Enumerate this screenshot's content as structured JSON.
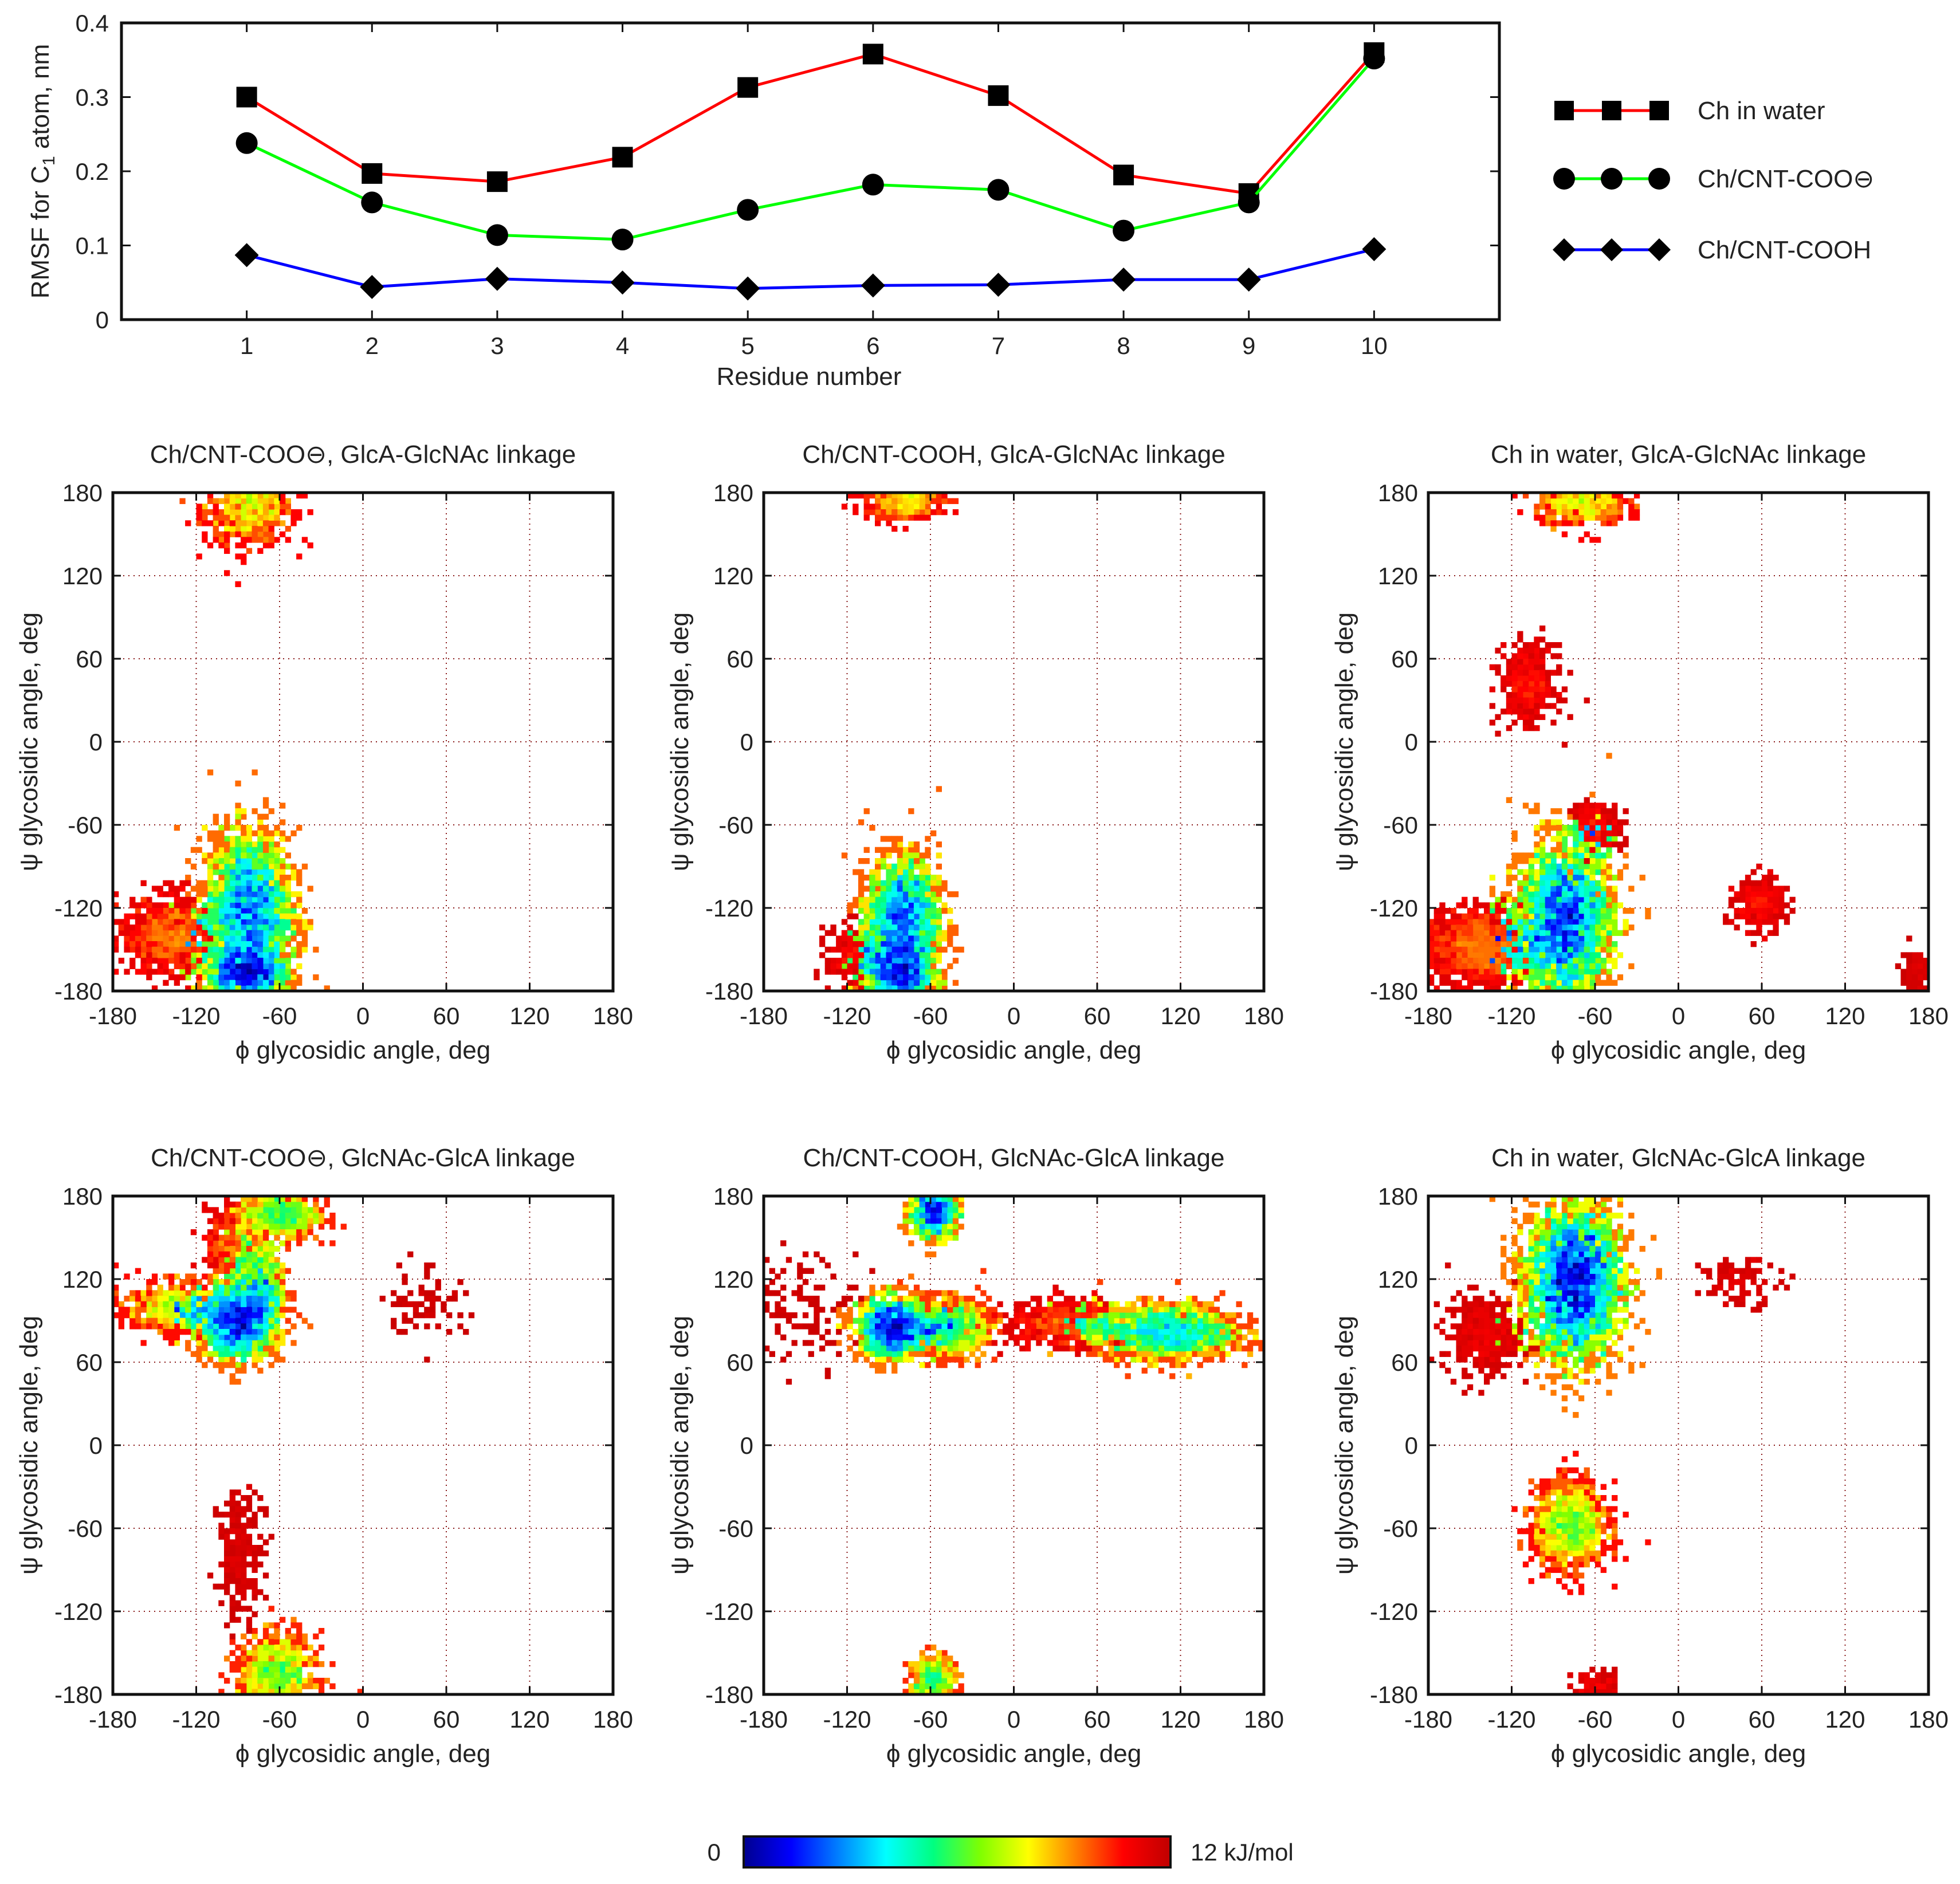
{
  "chart_data": [
    {
      "type": "line",
      "ylabel": "RMSF for C1 atom, nm",
      "xlabel": "Residue number",
      "x": [
        1,
        2,
        3,
        4,
        5,
        6,
        7,
        8,
        9,
        10
      ],
      "xlim": [
        0.0,
        11.0
      ],
      "ylim": [
        0,
        0.4
      ],
      "yticks": [
        "0",
        "0.1",
        "0.2",
        "0.3",
        "0.4"
      ],
      "yticks_values": [
        0,
        0.1,
        0.2,
        0.3,
        0.4
      ],
      "series": [
        {
          "name": "Ch in water",
          "color": "#ff0000",
          "marker": "square",
          "values": [
            0.3,
            0.197,
            0.186,
            0.219,
            0.313,
            0.358,
            0.302,
            0.195,
            0.17,
            0.36
          ]
        },
        {
          "name": "Ch/CNT-COO⊖",
          "color": "#00ff00",
          "marker": "circle",
          "values": [
            0.238,
            0.158,
            0.114,
            0.108,
            0.148,
            0.182,
            0.175,
            0.12,
            0.158,
            0.352
          ]
        },
        {
          "name": "Ch/CNT-COOH",
          "color": "#0000ff",
          "marker": "diamond",
          "values": [
            0.087,
            0.044,
            0.055,
            0.05,
            0.042,
            0.046,
            0.047,
            0.054,
            0.054,
            0.095
          ]
        }
      ],
      "legend": "right"
    },
    {
      "type": "heatmap",
      "title": "Ch/CNT-COO⊖, GlcA-GlcNAc linkage",
      "xlabel": "ϕ glycosidic angle, deg",
      "ylabel": "ψ glycosidic angle, deg",
      "xlim": [
        -180,
        180
      ],
      "ylim": [
        -180,
        180
      ],
      "ticks": [
        "-180",
        "-120",
        "-60",
        "0",
        "60",
        "120",
        "180"
      ],
      "ticks_values": [
        -180,
        -120,
        -60,
        0,
        60,
        120,
        180
      ],
      "clusters": [
        {
          "phi": -82,
          "psi": 170,
          "sphi": 16,
          "spsi": 14,
          "n": 70,
          "depth": 0.45
        },
        {
          "phi": -82,
          "psi": -122,
          "sphi": 15,
          "spsi": 28,
          "n": 240,
          "depth": 0.0
        },
        {
          "phi": -84,
          "psi": -168,
          "sphi": 14,
          "spsi": 10,
          "n": 120,
          "depth": 0.0
        },
        {
          "phi": -135,
          "psi": -140,
          "sphi": 20,
          "spsi": 14,
          "n": 80,
          "depth": 0.65
        }
      ]
    },
    {
      "type": "heatmap",
      "title": "Ch/CNT-COOH, GlcA-GlcNAc linkage",
      "xlabel": "ϕ glycosidic angle, deg",
      "ylabel": "ψ glycosidic angle, deg",
      "xlim": [
        -180,
        180
      ],
      "ylim": [
        -180,
        180
      ],
      "ticks": [
        "-180",
        "-120",
        "-60",
        "0",
        "60",
        "120",
        "180"
      ],
      "ticks_values": [
        -180,
        -120,
        -60,
        0,
        60,
        120,
        180
      ],
      "clusters": [
        {
          "phi": -80,
          "psi": 175,
          "sphi": 14,
          "spsi": 7,
          "n": 45,
          "depth": 0.55
        },
        {
          "phi": -80,
          "psi": -128,
          "sphi": 13,
          "spsi": 22,
          "n": 200,
          "depth": 0.05
        },
        {
          "phi": -82,
          "psi": -168,
          "sphi": 12,
          "spsi": 10,
          "n": 90,
          "depth": 0.0
        },
        {
          "phi": -110,
          "psi": -155,
          "sphi": 12,
          "spsi": 12,
          "n": 35,
          "depth": 0.8
        }
      ]
    },
    {
      "type": "heatmap",
      "title": "Ch in water, GlcA-GlcNAc linkage",
      "xlabel": "ϕ glycosidic angle, deg",
      "ylabel": "ψ glycosidic angle, deg",
      "xlim": [
        -180,
        180
      ],
      "ylim": [
        -180,
        180
      ],
      "ticks": [
        "-180",
        "-120",
        "-60",
        "0",
        "60",
        "120",
        "180"
      ],
      "ticks_values": [
        -180,
        -120,
        -60,
        0,
        60,
        120,
        180
      ],
      "clusters": [
        {
          "phi": -82,
          "psi": -130,
          "sphi": 17,
          "spsi": 28,
          "n": 280,
          "depth": 0.0
        },
        {
          "phi": -142,
          "psi": -148,
          "sphi": 20,
          "spsi": 14,
          "n": 130,
          "depth": 0.72
        },
        {
          "phi": -70,
          "psi": 172,
          "sphi": 16,
          "spsi": 8,
          "n": 50,
          "depth": 0.5
        },
        {
          "phi": -108,
          "psi": 42,
          "sphi": 10,
          "spsi": 14,
          "n": 40,
          "depth": 0.8
        },
        {
          "phi": 58,
          "psi": -118,
          "sphi": 9,
          "spsi": 10,
          "n": 30,
          "depth": 0.82
        },
        {
          "phi": -60,
          "psi": -62,
          "sphi": 9,
          "spsi": 9,
          "n": 30,
          "depth": 0.82
        },
        {
          "phi": 172,
          "psi": -165,
          "sphi": 5,
          "spsi": 8,
          "n": 10,
          "depth": 0.9
        }
      ]
    },
    {
      "type": "heatmap",
      "title": "Ch/CNT-COO⊖, GlcNAc-GlcA linkage",
      "xlabel": "ϕ glycosidic angle, deg",
      "ylabel": "ψ glycosidic angle, deg",
      "xlim": [
        -180,
        180
      ],
      "ylim": [
        -180,
        180
      ],
      "ticks": [
        "-180",
        "-120",
        "-60",
        "0",
        "60",
        "120",
        "180"
      ],
      "ticks_values": [
        -180,
        -120,
        -60,
        0,
        60,
        120,
        180
      ],
      "clusters": [
        {
          "phi": -90,
          "psi": 87,
          "sphi": 14,
          "spsi": 12,
          "n": 140,
          "depth": 0.0
        },
        {
          "phi": -130,
          "psi": 100,
          "sphi": 20,
          "spsi": 9,
          "n": 80,
          "depth": 0.4
        },
        {
          "phi": -74,
          "psi": 113,
          "sphi": 9,
          "spsi": 14,
          "n": 60,
          "depth": 0.2
        },
        {
          "phi": -60,
          "psi": 167,
          "sphi": 14,
          "spsi": 9,
          "n": 70,
          "depth": 0.3
        },
        {
          "phi": -92,
          "psi": 142,
          "sphi": 10,
          "spsi": 14,
          "n": 45,
          "depth": 0.65
        },
        {
          "phi": -62,
          "psi": -165,
          "sphi": 14,
          "spsi": 14,
          "n": 80,
          "depth": 0.3
        },
        {
          "phi": -88,
          "psi": -78,
          "sphi": 8,
          "spsi": 22,
          "n": 25,
          "depth": 0.88
        },
        {
          "phi": 45,
          "psi": 105,
          "sphi": 14,
          "spsi": 14,
          "n": 8,
          "depth": 0.9
        }
      ]
    },
    {
      "type": "heatmap",
      "title": "Ch/CNT-COOH, GlcNAc-GlcA linkage",
      "xlabel": "ϕ glycosidic angle, deg",
      "ylabel": "ψ glycosidic angle, deg",
      "xlim": [
        -180,
        180
      ],
      "ylim": [
        -180,
        180
      ],
      "ticks": [
        "-180",
        "-120",
        "-60",
        "0",
        "60",
        "120",
        "180"
      ],
      "ticks_values": [
        -180,
        -120,
        -60,
        0,
        60,
        120,
        180
      ],
      "clusters": [
        {
          "phi": -58,
          "psi": 168,
          "sphi": 9,
          "spsi": 9,
          "n": 60,
          "depth": 0.0
        },
        {
          "phi": -88,
          "psi": 85,
          "sphi": 12,
          "spsi": 11,
          "n": 110,
          "depth": 0.0
        },
        {
          "phi": -48,
          "psi": 85,
          "sphi": 14,
          "spsi": 10,
          "n": 80,
          "depth": 0.25
        },
        {
          "phi": 110,
          "psi": 82,
          "sphi": 25,
          "spsi": 10,
          "n": 160,
          "depth": 0.2
        },
        {
          "phi": 40,
          "psi": 88,
          "sphi": 22,
          "spsi": 8,
          "n": 60,
          "depth": 0.72
        },
        {
          "phi": -58,
          "psi": -170,
          "sphi": 8,
          "spsi": 9,
          "n": 40,
          "depth": 0.3
        },
        {
          "phi": -150,
          "psi": 100,
          "sphi": 20,
          "spsi": 20,
          "n": 12,
          "depth": 0.9
        }
      ]
    },
    {
      "type": "heatmap",
      "title": "Ch in water, GlcNAc-GlcA linkage",
      "xlabel": "ϕ glycosidic angle, deg",
      "ylabel": "ψ glycosidic angle, deg",
      "xlim": [
        -180,
        180
      ],
      "ylim": [
        -180,
        180
      ],
      "ticks": [
        "-180",
        "-120",
        "-60",
        "0",
        "60",
        "120",
        "180"
      ],
      "ticks_values": [
        -180,
        -120,
        -60,
        0,
        60,
        120,
        180
      ],
      "clusters": [
        {
          "phi": -75,
          "psi": 118,
          "sphi": 17,
          "spsi": 28,
          "n": 320,
          "depth": 0.0
        },
        {
          "phi": -140,
          "psi": 80,
          "sphi": 14,
          "spsi": 14,
          "n": 40,
          "depth": 0.85
        },
        {
          "phi": -78,
          "psi": -58,
          "sphi": 13,
          "spsi": 15,
          "n": 120,
          "depth": 0.45
        },
        {
          "phi": -60,
          "psi": -175,
          "sphi": 8,
          "spsi": 6,
          "n": 12,
          "depth": 0.85
        },
        {
          "phi": 45,
          "psi": 118,
          "sphi": 14,
          "spsi": 8,
          "n": 10,
          "depth": 0.85
        }
      ]
    }
  ],
  "colorbar": {
    "min_label": "0",
    "max_label": "12 kJ/mol",
    "stops": [
      "#00008f",
      "#0000ff",
      "#0080ff",
      "#00ffff",
      "#00ff80",
      "#80ff00",
      "#ffff00",
      "#ff8000",
      "#ff0000",
      "#c00000"
    ]
  }
}
